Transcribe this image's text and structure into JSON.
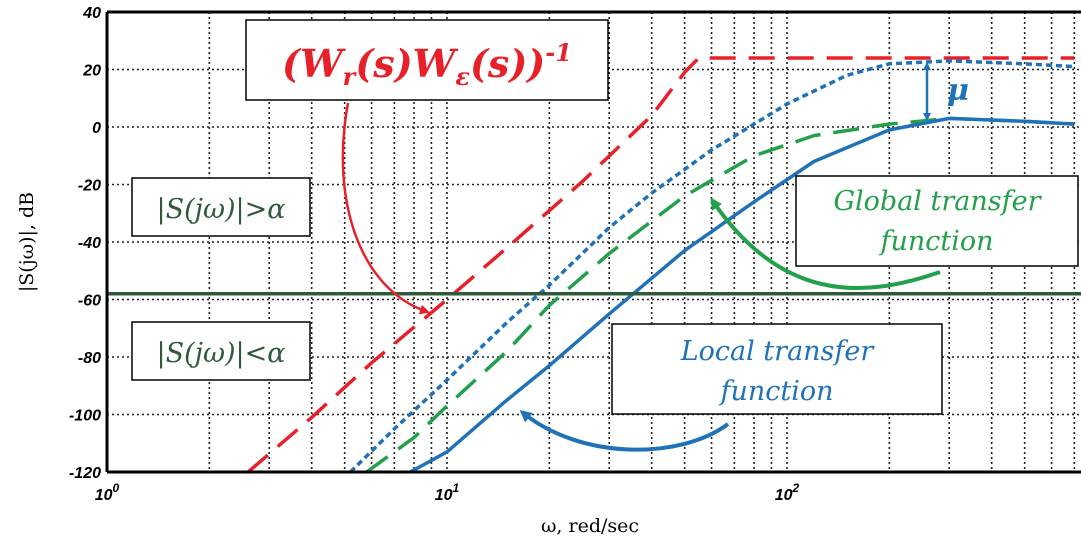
{
  "chart_data": {
    "type": "line",
    "xscale": "log",
    "xlim": [
      1,
      700
    ],
    "ylim": [
      -120,
      40
    ],
    "grid": true,
    "xlabel": "ω, red/sec",
    "ylabel": "|S(jω)|, dB",
    "x_ticks": [
      {
        "value": 1,
        "base": "10",
        "exp": "0"
      },
      {
        "value": 10,
        "base": "10",
        "exp": "1"
      },
      {
        "value": 100,
        "base": "10",
        "exp": "2"
      }
    ],
    "y_ticks": [
      40,
      20,
      0,
      -20,
      -40,
      -60,
      -80,
      -100,
      -120
    ],
    "threshold": {
      "value": -58,
      "color": "#2e5a3a"
    },
    "series": [
      {
        "key": "inverse-weight",
        "style": "dashed",
        "color": "#e8202a",
        "points": [
          [
            2.6,
            -120
          ],
          [
            4,
            -101
          ],
          [
            6,
            -82
          ],
          [
            10,
            -60
          ],
          [
            15,
            -42
          ],
          [
            25,
            -19
          ],
          [
            40,
            4
          ],
          [
            50,
            19
          ],
          [
            55,
            24
          ],
          [
            100,
            24
          ],
          [
            300,
            24
          ],
          [
            700,
            24
          ]
        ]
      },
      {
        "key": "global-upper",
        "style": "dotted",
        "color": "#1f72b8",
        "points": [
          [
            5.2,
            -120
          ],
          [
            7,
            -105
          ],
          [
            10,
            -88
          ],
          [
            15,
            -68
          ],
          [
            20,
            -55
          ],
          [
            30,
            -35
          ],
          [
            40,
            -23
          ],
          [
            60,
            -8
          ],
          [
            100,
            8
          ],
          [
            150,
            18
          ],
          [
            200,
            22
          ],
          [
            300,
            23
          ],
          [
            500,
            22
          ],
          [
            700,
            21
          ]
        ]
      },
      {
        "key": "global",
        "style": "dashed",
        "color": "#22a04a",
        "points": [
          [
            5.8,
            -120
          ],
          [
            8,
            -108
          ],
          [
            10,
            -97
          ],
          [
            15,
            -78
          ],
          [
            20,
            -62
          ],
          [
            30,
            -44
          ],
          [
            50,
            -24
          ],
          [
            80,
            -10
          ],
          [
            120,
            -3
          ],
          [
            200,
            1
          ],
          [
            300,
            3
          ],
          [
            500,
            2
          ],
          [
            700,
            1
          ]
        ]
      },
      {
        "key": "local",
        "style": "solid",
        "color": "#1f72b8",
        "points": [
          [
            7.8,
            -120
          ],
          [
            10,
            -113
          ],
          [
            15,
            -95
          ],
          [
            20,
            -83
          ],
          [
            30,
            -65
          ],
          [
            50,
            -43
          ],
          [
            80,
            -26
          ],
          [
            120,
            -12
          ],
          [
            200,
            -1
          ],
          [
            300,
            3
          ],
          [
            500,
            2
          ],
          [
            700,
            1
          ]
        ]
      }
    ],
    "annotations": {
      "inverse_weight_label": {
        "open": "(W",
        "r_sub": "r",
        "mid": "(s)W",
        "e_sub": "ε",
        "close": "(s))",
        "sup": "-1"
      },
      "region_above": "|S(jω)|>α",
      "region_below": "|S(jω)|<α",
      "global_label": [
        "Global transfer",
        "function"
      ],
      "local_label": [
        "Local transfer",
        "function"
      ],
      "mu_label": "μ"
    },
    "colors": {
      "red": "#e8202a",
      "blue": "#1f72b8",
      "green": "#22a04a",
      "dark_green": "#2e5a3a"
    }
  }
}
